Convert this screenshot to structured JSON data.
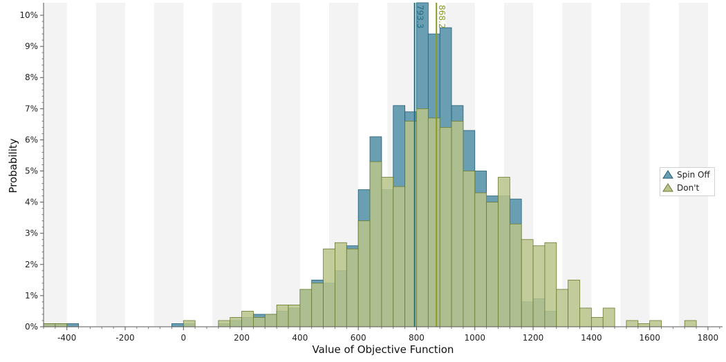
{
  "chart_data": {
    "type": "bar",
    "xlabel": "Value of Objective Function",
    "ylabel": "Probability",
    "xlim": [
      -480,
      1850
    ],
    "ylim": [
      0,
      10.4
    ],
    "bin_width": 40,
    "x_ticks": [
      -400,
      -200,
      0,
      200,
      400,
      600,
      800,
      1000,
      1200,
      1400,
      1600,
      1800
    ],
    "y_ticks": [
      0,
      1,
      2,
      3,
      4,
      5,
      6,
      7,
      8,
      9,
      10
    ],
    "y_tick_labels": [
      "0%",
      "1%",
      "2%",
      "3%",
      "4%",
      "5%",
      "6%",
      "7%",
      "8%",
      "9%",
      "10%"
    ],
    "series": [
      {
        "name": "Spin Off",
        "color": "#6a9fb3",
        "stroke": "#1f5c74",
        "bin_starts": [
          -480,
          -440,
          -400,
          -40,
          0,
          120,
          160,
          200,
          240,
          280,
          320,
          360,
          400,
          440,
          480,
          520,
          560,
          600,
          640,
          680,
          720,
          760,
          800,
          840,
          880,
          920,
          960,
          1000,
          1040,
          1080,
          1120,
          1160,
          1200,
          1240
        ],
        "values": [
          0.1,
          0.1,
          0.1,
          0.1,
          0.1,
          0.1,
          0.2,
          0.3,
          0.4,
          0.4,
          0.5,
          0.6,
          1.2,
          1.5,
          1.4,
          1.8,
          2.6,
          4.4,
          6.1,
          4.4,
          7.1,
          6.9,
          10.8,
          9.4,
          9.6,
          7.1,
          6.3,
          5.0,
          4.2,
          4.2,
          4.1,
          0.8,
          0.9,
          0.5
        ]
      },
      {
        "name": "Don't",
        "color": "#b8c48b",
        "stroke": "#6b7a2e",
        "bin_starts": [
          -480,
          -440,
          -400,
          0,
          120,
          160,
          200,
          240,
          280,
          320,
          360,
          400,
          440,
          480,
          520,
          560,
          600,
          640,
          680,
          720,
          760,
          800,
          840,
          880,
          920,
          960,
          1000,
          1040,
          1080,
          1120,
          1160,
          1200,
          1240,
          1280,
          1320,
          1360,
          1400,
          1440,
          1480,
          1520,
          1560,
          1600,
          1680,
          1720
        ],
        "values": [
          0.1,
          0.1,
          0.0,
          0.2,
          0.2,
          0.3,
          0.5,
          0.3,
          0.4,
          0.7,
          0.7,
          1.2,
          1.4,
          2.5,
          2.7,
          2.5,
          3.4,
          5.3,
          4.8,
          4.5,
          6.6,
          7.0,
          6.7,
          6.4,
          6.6,
          5.0,
          4.3,
          4.0,
          4.8,
          3.3,
          2.8,
          2.6,
          2.7,
          1.2,
          1.5,
          0.6,
          0.3,
          0.6,
          0.0,
          0.2,
          0.1,
          0.2,
          0.0,
          0.2
        ]
      }
    ],
    "reference_lines": [
      {
        "value": 793.3,
        "label": "793.3",
        "color": "#1f6f8b"
      },
      {
        "value": 868.2,
        "label": "868.2",
        "color": "#8a9b1e"
      }
    ],
    "legend": {
      "placement": "right",
      "items": [
        "Spin Off",
        "Don't"
      ]
    }
  }
}
